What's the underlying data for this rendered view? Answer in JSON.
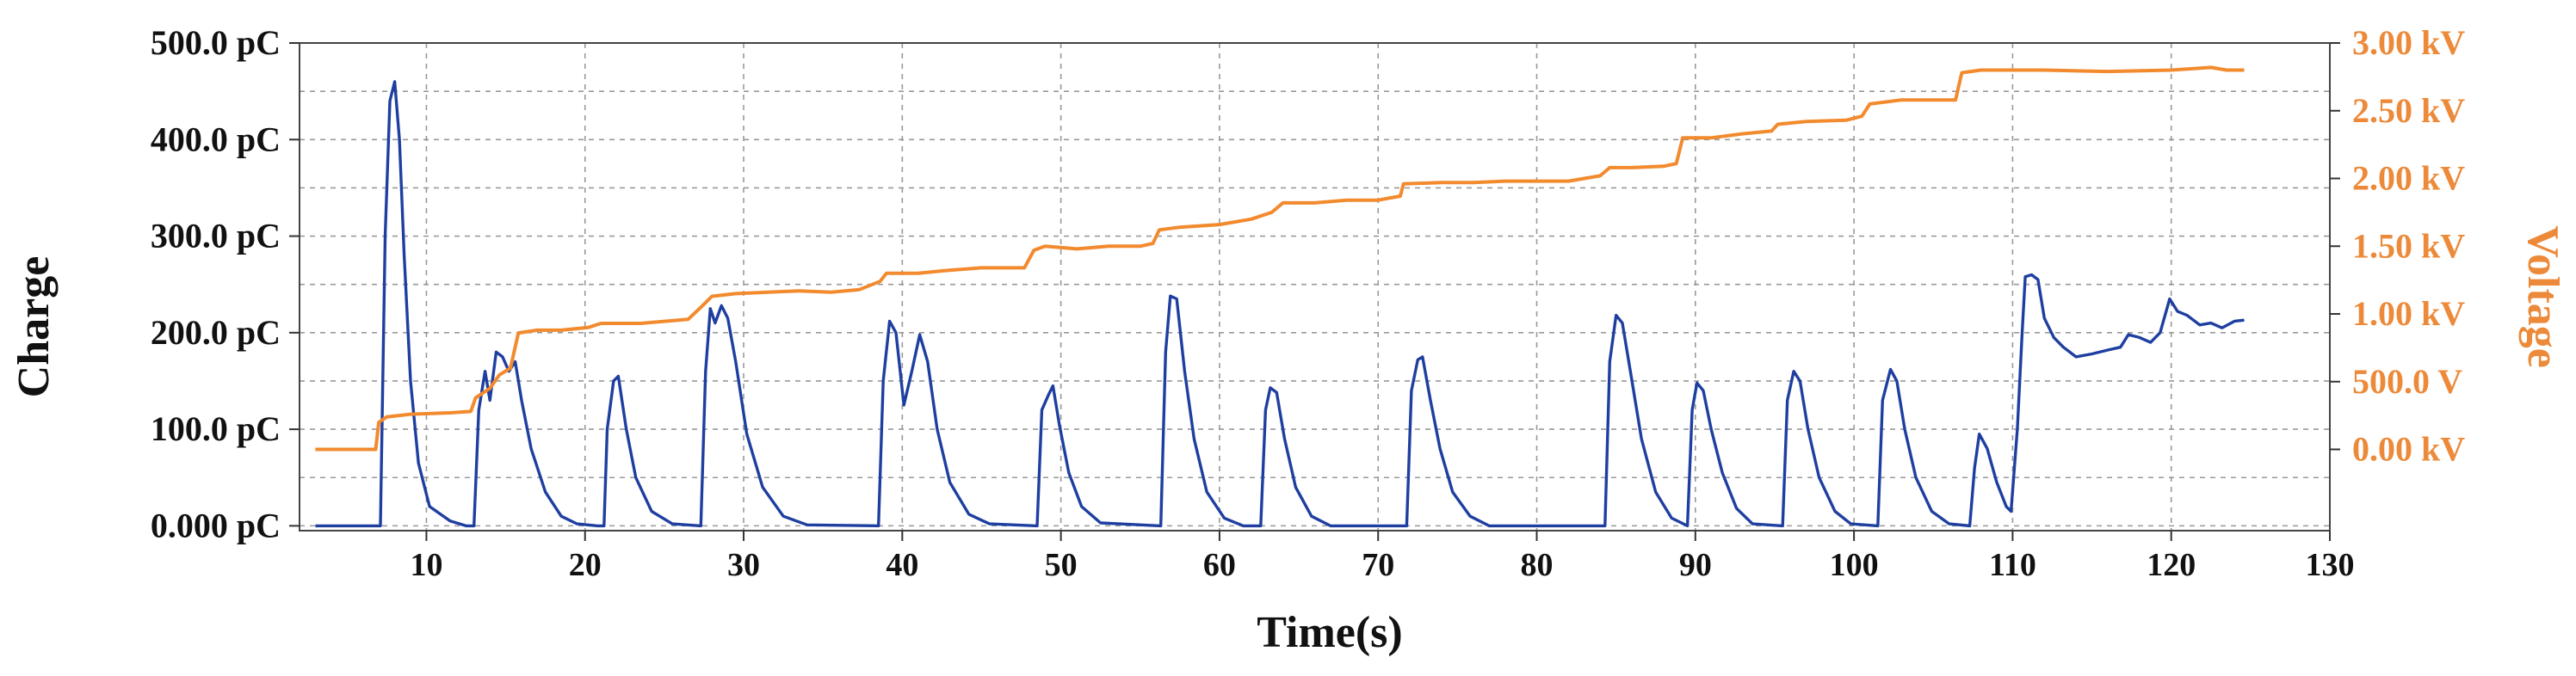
{
  "chart_data": {
    "type": "line",
    "xlabel": "Time(s)",
    "ylabel_left": "Charge",
    "ylabel_right": "Voltage",
    "x_range": [
      2,
      130
    ],
    "x_ticks": [
      10,
      20,
      30,
      40,
      50,
      60,
      70,
      80,
      90,
      100,
      110,
      120,
      130
    ],
    "x_tick_labels": [
      "10",
      "20",
      "30",
      "40",
      "50",
      "60",
      "70",
      "80",
      "90",
      "100",
      "110",
      "120",
      "130"
    ],
    "y_left_range": [
      -5,
      500
    ],
    "y_left_ticks": [
      0,
      100,
      200,
      300,
      400,
      500
    ],
    "y_left_tick_labels": [
      "0.000 pC",
      "100.0 pC",
      "200.0 pC",
      "300.0 pC",
      "400.0 pC",
      "500.0 pC"
    ],
    "y_right_range": [
      -0.6,
      3.0
    ],
    "y_right_ticks": [
      0,
      0.5,
      1.0,
      1.5,
      2.0,
      2.5,
      3.0
    ],
    "y_right_tick_labels": [
      "0.00 kV",
      "500.0 V",
      "1.00 kV",
      "1.50 kV",
      "2.00 kV",
      "2.50 kV",
      "3.00 kV"
    ],
    "grid": true,
    "colors": {
      "charge": "#1f3fa0",
      "voltage": "#f28a2e",
      "grid": "#999999",
      "axis_text": "#111111",
      "right_axis_text": "#ec8a3a"
    },
    "series": [
      {
        "axis": "left",
        "color": "#1f3fa0",
        "points": [
          [
            3,
            0
          ],
          [
            6.8,
            0
          ],
          [
            7.1,
            0
          ],
          [
            7.4,
            300
          ],
          [
            7.7,
            440
          ],
          [
            8.0,
            460
          ],
          [
            8.3,
            400
          ],
          [
            8.6,
            280
          ],
          [
            9.0,
            150
          ],
          [
            9.5,
            65
          ],
          [
            10.2,
            20
          ],
          [
            11.5,
            5
          ],
          [
            12.5,
            0
          ],
          [
            13.0,
            0
          ],
          [
            13.3,
            120
          ],
          [
            13.7,
            160
          ],
          [
            14.0,
            130
          ],
          [
            14.4,
            180
          ],
          [
            14.8,
            175
          ],
          [
            15.2,
            160
          ],
          [
            15.6,
            170
          ],
          [
            16.0,
            130
          ],
          [
            16.6,
            80
          ],
          [
            17.5,
            35
          ],
          [
            18.5,
            10
          ],
          [
            19.5,
            2
          ],
          [
            20.8,
            0
          ],
          [
            21.2,
            0
          ],
          [
            21.4,
            100
          ],
          [
            21.8,
            150
          ],
          [
            22.1,
            155
          ],
          [
            22.6,
            100
          ],
          [
            23.2,
            50
          ],
          [
            24.2,
            15
          ],
          [
            25.5,
            2
          ],
          [
            27.3,
            0
          ],
          [
            27.6,
            160
          ],
          [
            27.9,
            225
          ],
          [
            28.2,
            210
          ],
          [
            28.6,
            228
          ],
          [
            29.0,
            215
          ],
          [
            29.5,
            170
          ],
          [
            30.2,
            95
          ],
          [
            31.2,
            40
          ],
          [
            32.5,
            10
          ],
          [
            34.0,
            1
          ],
          [
            38.5,
            0
          ],
          [
            38.8,
            150
          ],
          [
            39.2,
            212
          ],
          [
            39.6,
            200
          ],
          [
            40.1,
            125
          ],
          [
            40.6,
            160
          ],
          [
            41.1,
            198
          ],
          [
            41.6,
            170
          ],
          [
            42.2,
            100
          ],
          [
            43.0,
            45
          ],
          [
            44.2,
            12
          ],
          [
            45.5,
            2
          ],
          [
            48.5,
            0
          ],
          [
            48.8,
            120
          ],
          [
            49.2,
            135
          ],
          [
            49.5,
            145
          ],
          [
            49.9,
            105
          ],
          [
            50.5,
            55
          ],
          [
            51.3,
            20
          ],
          [
            52.5,
            3
          ],
          [
            56.3,
            0
          ],
          [
            56.6,
            180
          ],
          [
            56.9,
            238
          ],
          [
            57.3,
            235
          ],
          [
            57.8,
            160
          ],
          [
            58.4,
            90
          ],
          [
            59.2,
            35
          ],
          [
            60.3,
            8
          ],
          [
            61.5,
            0
          ],
          [
            62.6,
            0
          ],
          [
            62.9,
            120
          ],
          [
            63.2,
            143
          ],
          [
            63.6,
            138
          ],
          [
            64.1,
            90
          ],
          [
            64.8,
            40
          ],
          [
            65.8,
            10
          ],
          [
            67.0,
            0
          ],
          [
            71.8,
            0
          ],
          [
            72.1,
            140
          ],
          [
            72.5,
            172
          ],
          [
            72.8,
            175
          ],
          [
            73.3,
            130
          ],
          [
            73.9,
            80
          ],
          [
            74.7,
            35
          ],
          [
            75.8,
            10
          ],
          [
            77.0,
            0
          ],
          [
            84.3,
            0
          ],
          [
            84.6,
            170
          ],
          [
            85.0,
            218
          ],
          [
            85.4,
            210
          ],
          [
            85.9,
            160
          ],
          [
            86.6,
            90
          ],
          [
            87.5,
            35
          ],
          [
            88.5,
            8
          ],
          [
            89.5,
            0
          ],
          [
            89.8,
            120
          ],
          [
            90.1,
            148
          ],
          [
            90.5,
            140
          ],
          [
            91.0,
            100
          ],
          [
            91.7,
            55
          ],
          [
            92.6,
            18
          ],
          [
            93.6,
            2
          ],
          [
            95.5,
            0
          ],
          [
            95.8,
            130
          ],
          [
            96.2,
            160
          ],
          [
            96.6,
            150
          ],
          [
            97.1,
            100
          ],
          [
            97.8,
            50
          ],
          [
            98.8,
            15
          ],
          [
            99.8,
            2
          ],
          [
            101.5,
            0
          ],
          [
            101.8,
            130
          ],
          [
            102.3,
            162
          ],
          [
            102.7,
            150
          ],
          [
            103.2,
            100
          ],
          [
            103.9,
            50
          ],
          [
            104.9,
            15
          ],
          [
            106.0,
            2
          ],
          [
            107.3,
            0
          ],
          [
            107.6,
            60
          ],
          [
            107.9,
            95
          ],
          [
            108.4,
            80
          ],
          [
            109.0,
            45
          ],
          [
            109.6,
            20
          ],
          [
            109.9,
            15
          ],
          [
            110.3,
            100
          ],
          [
            110.6,
            200
          ],
          [
            110.8,
            258
          ],
          [
            111.2,
            260
          ],
          [
            111.6,
            255
          ],
          [
            112.0,
            215
          ],
          [
            112.6,
            195
          ],
          [
            113.2,
            185
          ],
          [
            114.0,
            175
          ],
          [
            115.0,
            178
          ],
          [
            116.0,
            182
          ],
          [
            116.8,
            185
          ],
          [
            117.3,
            198
          ],
          [
            118.0,
            195
          ],
          [
            118.7,
            190
          ],
          [
            119.3,
            200
          ],
          [
            119.9,
            235
          ],
          [
            120.4,
            222
          ],
          [
            121.0,
            218
          ],
          [
            121.8,
            208
          ],
          [
            122.5,
            210
          ],
          [
            123.2,
            205
          ],
          [
            124.0,
            212
          ],
          [
            124.6,
            213
          ]
        ]
      },
      {
        "axis": "right",
        "color": "#f28a2e",
        "points": [
          [
            3,
            0
          ],
          [
            6.8,
            0
          ],
          [
            7.0,
            0.2
          ],
          [
            7.5,
            0.24
          ],
          [
            9.0,
            0.26
          ],
          [
            11.5,
            0.27
          ],
          [
            12.8,
            0.28
          ],
          [
            13.1,
            0.38
          ],
          [
            14.0,
            0.45
          ],
          [
            14.6,
            0.55
          ],
          [
            15.3,
            0.6
          ],
          [
            15.8,
            0.86
          ],
          [
            17.0,
            0.88
          ],
          [
            18.5,
            0.88
          ],
          [
            20.2,
            0.9
          ],
          [
            21.0,
            0.93
          ],
          [
            23.5,
            0.93
          ],
          [
            26.5,
            0.96
          ],
          [
            27.4,
            1.06
          ],
          [
            28.0,
            1.13
          ],
          [
            29.5,
            1.15
          ],
          [
            31.5,
            1.16
          ],
          [
            33.5,
            1.17
          ],
          [
            35.5,
            1.16
          ],
          [
            37.3,
            1.18
          ],
          [
            38.6,
            1.24
          ],
          [
            39.0,
            1.3
          ],
          [
            41.0,
            1.3
          ],
          [
            42.7,
            1.32
          ],
          [
            45.0,
            1.34
          ],
          [
            47.7,
            1.34
          ],
          [
            48.3,
            1.47
          ],
          [
            49.0,
            1.5
          ],
          [
            51.0,
            1.48
          ],
          [
            53.0,
            1.5
          ],
          [
            55.0,
            1.5
          ],
          [
            55.8,
            1.52
          ],
          [
            56.2,
            1.62
          ],
          [
            57.5,
            1.64
          ],
          [
            60.0,
            1.66
          ],
          [
            62.0,
            1.7
          ],
          [
            63.3,
            1.75
          ],
          [
            64.0,
            1.82
          ],
          [
            66.0,
            1.82
          ],
          [
            68.0,
            1.84
          ],
          [
            70.0,
            1.84
          ],
          [
            71.4,
            1.87
          ],
          [
            71.6,
            1.96
          ],
          [
            74.0,
            1.97
          ],
          [
            76.0,
            1.97
          ],
          [
            78.0,
            1.98
          ],
          [
            80.0,
            1.98
          ],
          [
            82.0,
            1.98
          ],
          [
            84.0,
            2.02
          ],
          [
            84.6,
            2.08
          ],
          [
            86.0,
            2.08
          ],
          [
            88.0,
            2.09
          ],
          [
            88.8,
            2.11
          ],
          [
            89.2,
            2.3
          ],
          [
            91.0,
            2.3
          ],
          [
            93.0,
            2.33
          ],
          [
            94.8,
            2.35
          ],
          [
            95.2,
            2.4
          ],
          [
            97.0,
            2.42
          ],
          [
            99.5,
            2.43
          ],
          [
            100.5,
            2.46
          ],
          [
            101.0,
            2.55
          ],
          [
            103.0,
            2.58
          ],
          [
            106.4,
            2.58
          ],
          [
            106.8,
            2.78
          ],
          [
            108.0,
            2.8
          ],
          [
            112.0,
            2.8
          ],
          [
            116.0,
            2.79
          ],
          [
            120.0,
            2.8
          ],
          [
            122.5,
            2.82
          ],
          [
            123.5,
            2.8
          ],
          [
            124.6,
            2.8
          ]
        ]
      }
    ]
  }
}
